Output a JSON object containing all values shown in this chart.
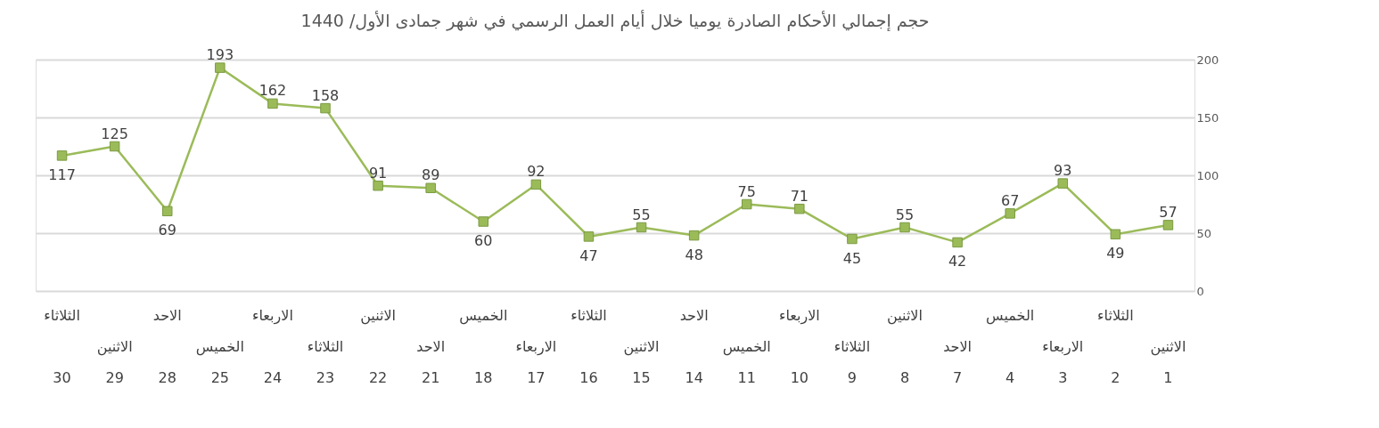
{
  "chart_data": {
    "type": "line",
    "title": "حجم إجمالي الأحكام الصادرة يوميا خلال  أيام العمل الرسمي في شهر    جمادى الأول/ 1440",
    "categories": [
      "الثلاثاء\n30",
      "الاثنين\n29",
      "الاحد\n28",
      "الخميس\n25",
      "الاربعاء\n24",
      "الثلاثاء\n23",
      "الاثنين\n22",
      "الاحد\n21",
      "الخميس\n18",
      "الاربعاء\n17",
      "الثلاثاء\n16",
      "الاثنين\n15",
      "الاحد\n14",
      "الخميس\n11",
      "الاربعاء\n10",
      "الثلاثاء\n9",
      "الاثنين\n8",
      "الاحد\n7",
      "الخميس\n4",
      "الاربعاء\n3",
      "الثلاثاء\n2",
      "الاثنين\n1"
    ],
    "series": [
      {
        "color": "#9bbb59",
        "values": [
          117,
          125,
          69,
          193,
          162,
          158,
          91,
          89,
          60,
          92,
          47,
          55,
          48,
          75,
          71,
          45,
          55,
          42,
          67,
          93,
          49,
          57
        ]
      }
    ],
    "ylim": [
      0,
      200
    ],
    "yticks": [
      0,
      50,
      100,
      150,
      200
    ],
    "grid": "y",
    "marker": "square",
    "data_labels": true
  }
}
